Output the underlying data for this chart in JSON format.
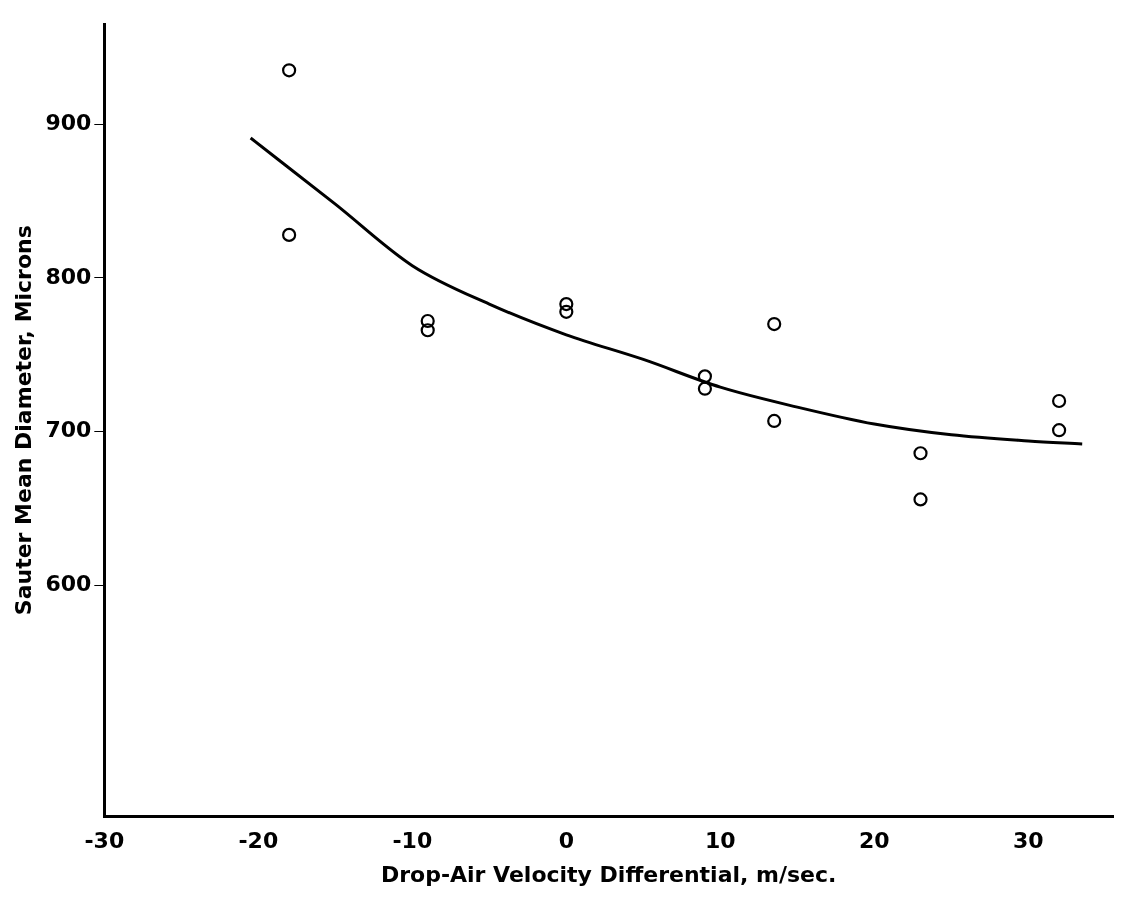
{
  "chart_data": {
    "type": "scatter",
    "xlabel": "Drop-Air Velocity Differential, m/sec.",
    "ylabel": "Sauter Mean Diameter, Microns",
    "xlim": [
      -30,
      35.5
    ],
    "xticks": [
      -30,
      -20,
      -10,
      0,
      10,
      20,
      30
    ],
    "ylim": [
      450,
      965
    ],
    "yticks": [
      600,
      700,
      800,
      900
    ],
    "grid": false,
    "legend": false,
    "marker": "circle",
    "series": [
      {
        "type": "scatter",
        "color": "#000000",
        "x": [
          -18,
          -18,
          -9,
          -9,
          0,
          0,
          9,
          9,
          13.5,
          13.5,
          23,
          23,
          32,
          32
        ],
        "values": [
          935,
          828,
          772,
          766,
          783,
          778,
          736,
          728,
          770,
          707,
          686,
          656,
          720,
          701
        ]
      },
      {
        "type": "line",
        "color": "#000000",
        "marker": "none",
        "x": [
          -20.5,
          -15,
          -10,
          -5,
          0,
          5,
          10,
          15,
          20,
          25,
          30,
          33.5
        ],
        "values": [
          891,
          848,
          808,
          783,
          763,
          747,
          729,
          716,
          705,
          698,
          694,
          692
        ]
      }
    ]
  }
}
